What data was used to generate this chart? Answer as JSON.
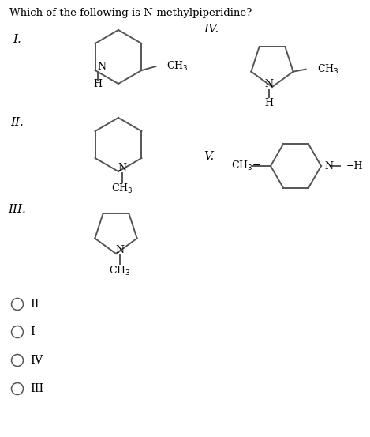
{
  "title": "Which of the following is N-methylpiperidine?",
  "title_fontsize": 9.5,
  "background_color": "#ffffff",
  "text_color": "#000000",
  "options": [
    "II",
    "I",
    "IV",
    "III"
  ],
  "bond_lw": 1.4,
  "ring_color": "#555555"
}
